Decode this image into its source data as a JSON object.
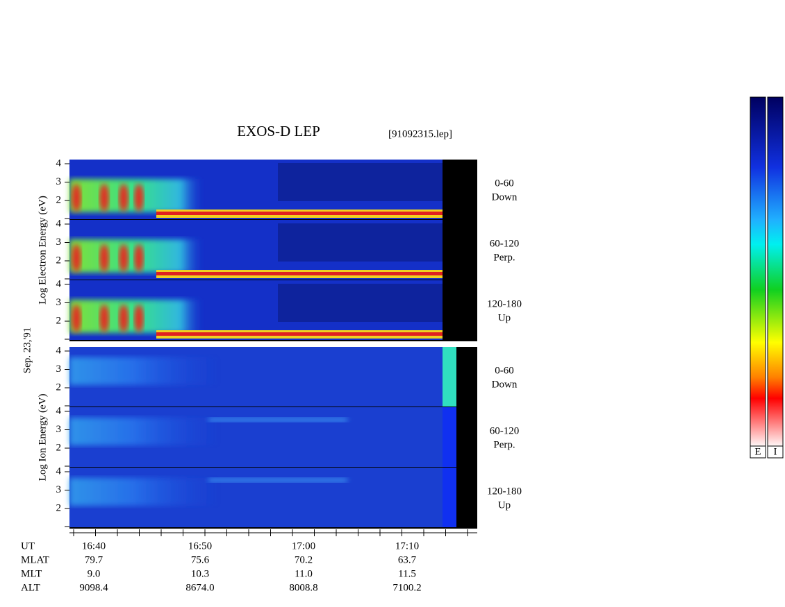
{
  "header": {
    "title": "EXOS-D LEP",
    "file": "[91092315.lep]"
  },
  "date": "Sep. 23,'91",
  "groups": [
    {
      "label": "Log  Electron  Energy (eV)",
      "panels": [
        {
          "angle": "0-60",
          "direction": "Down"
        },
        {
          "angle": "60-120",
          "direction": "Perp."
        },
        {
          "angle": "120-180",
          "direction": "Up"
        }
      ]
    },
    {
      "label": "Log  Ion  Energy (eV)",
      "panels": [
        {
          "angle": "0-60",
          "direction": "Down"
        },
        {
          "angle": "60-120",
          "direction": "Perp."
        },
        {
          "angle": "120-180",
          "direction": "Up"
        }
      ]
    }
  ],
  "y_ticks": [
    "4",
    "3",
    "2"
  ],
  "x_axis": {
    "rows": [
      {
        "label": "UT",
        "values": [
          "16:40",
          "16:50",
          "17:00",
          "17:10"
        ]
      },
      {
        "label": "MLAT",
        "values": [
          "79.7",
          "75.6",
          "70.2",
          "63.7"
        ]
      },
      {
        "label": "MLT",
        "values": [
          "9.0",
          "10.3",
          "11.0",
          "11.5"
        ]
      },
      {
        "label": "ALT",
        "values": [
          "9098.4",
          "8674.0",
          "8008.8",
          "7100.2"
        ]
      }
    ]
  },
  "color_bar": {
    "labels": [
      "E",
      "I"
    ]
  }
}
